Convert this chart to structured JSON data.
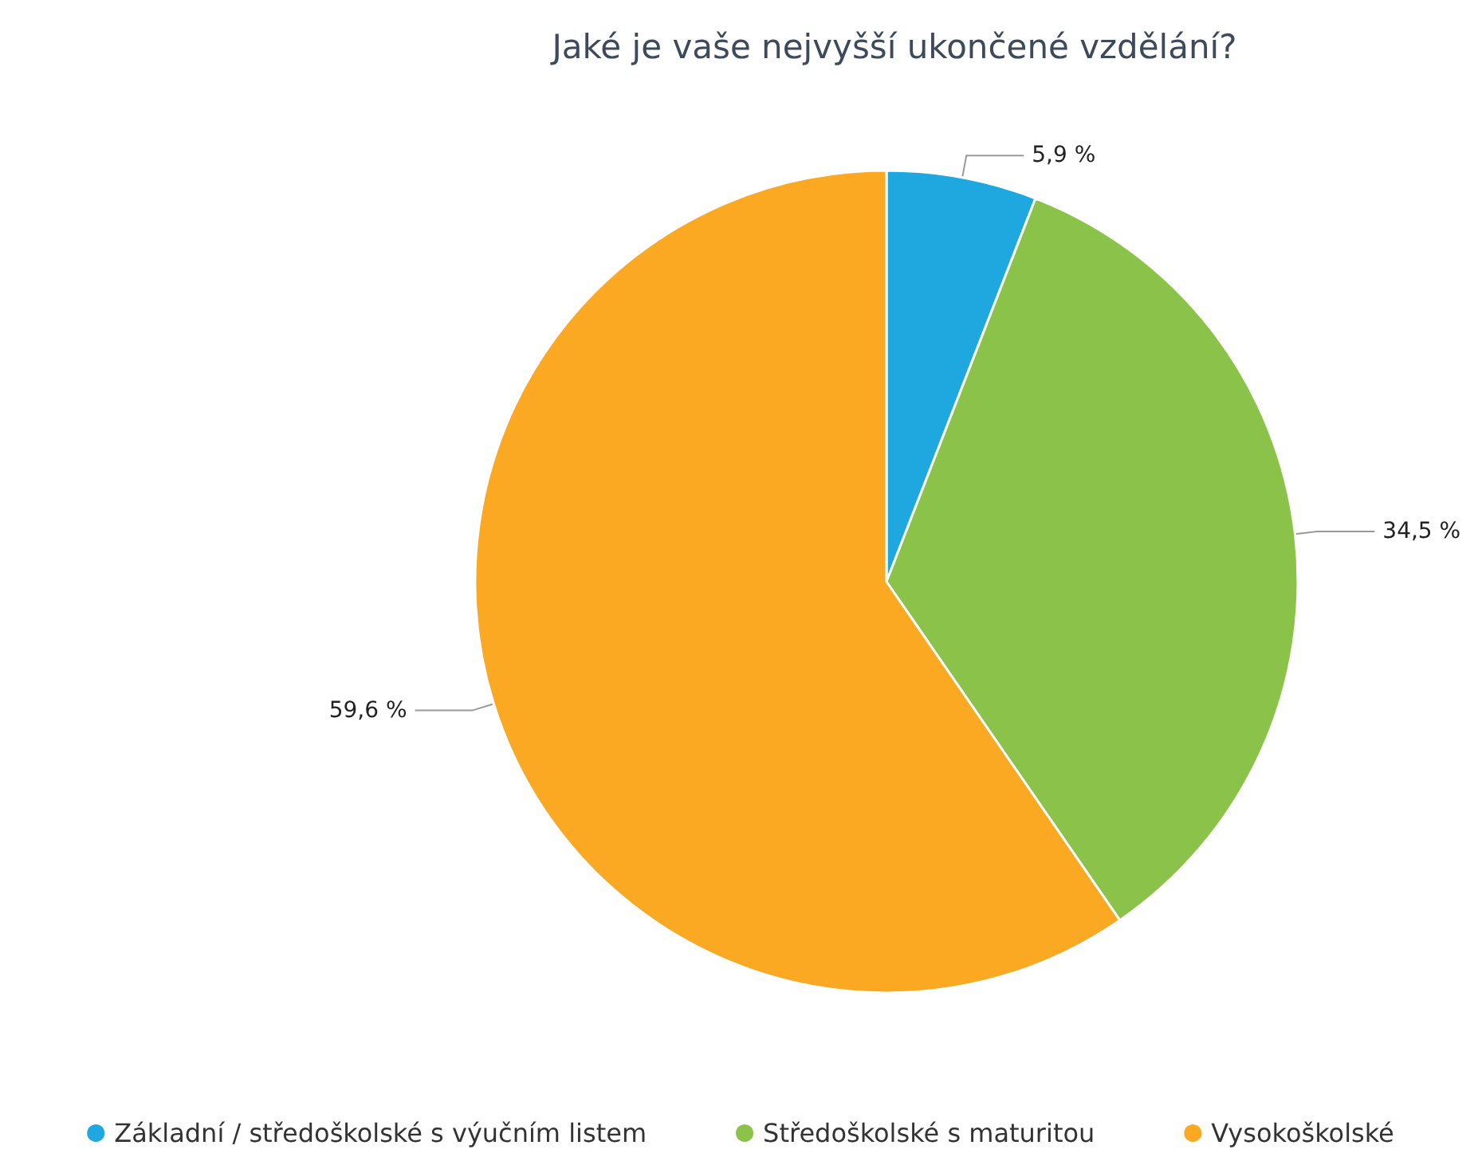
{
  "chart_data": {
    "type": "pie",
    "title": "Jaké je vaše nejvyšší ukončené vzdělání?",
    "categories": [
      "Základní / středoškolské s výučním listem",
      "Středoškolské s maturitou",
      "Vysokoškolské"
    ],
    "values": [
      5.9,
      34.5,
      59.6
    ],
    "colors": [
      "#1fa8e0",
      "#8bc34a",
      "#fba823"
    ],
    "value_labels": [
      "5,9 %",
      "34,5 %",
      "59,6 %"
    ],
    "legend": "bottom"
  }
}
